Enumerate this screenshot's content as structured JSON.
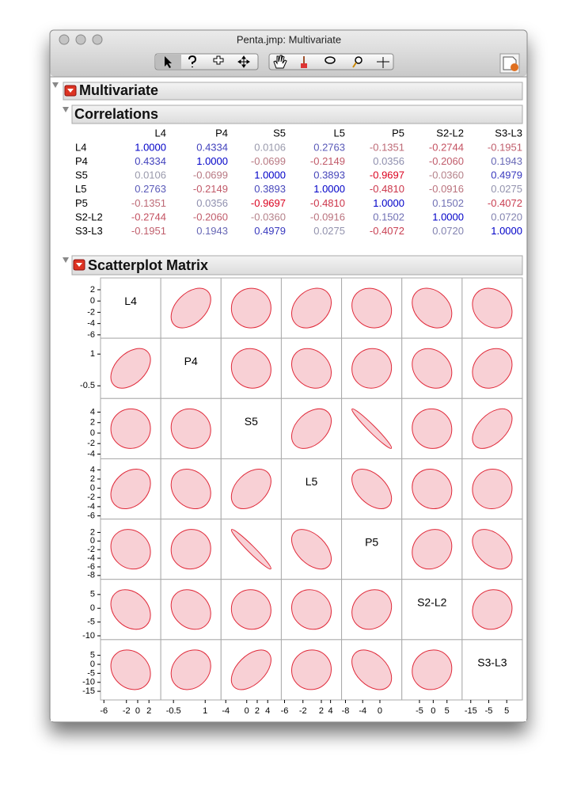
{
  "window": {
    "title": "Penta.jmp: Multivariate"
  },
  "multivariate": {
    "title": "Multivariate"
  },
  "correlations": {
    "title": "Correlations",
    "columns": [
      "L4",
      "P4",
      "S5",
      "L5",
      "P5",
      "S2-L2",
      "S3-L3"
    ],
    "rows": [
      {
        "label": "L4",
        "values": [
          "1.0000",
          "0.4334",
          "0.0106",
          "0.2763",
          "-0.1351",
          "-0.2744",
          "-0.1951"
        ]
      },
      {
        "label": "P4",
        "values": [
          "0.4334",
          "1.0000",
          "-0.0699",
          "-0.2149",
          "0.0356",
          "-0.2060",
          "0.1943"
        ]
      },
      {
        "label": "S5",
        "values": [
          "0.0106",
          "-0.0699",
          "1.0000",
          "0.3893",
          "-0.9697",
          "-0.0360",
          "0.4979"
        ]
      },
      {
        "label": "L5",
        "values": [
          "0.2763",
          "-0.2149",
          "0.3893",
          "1.0000",
          "-0.4810",
          "-0.0916",
          "0.0275"
        ]
      },
      {
        "label": "P5",
        "values": [
          "-0.1351",
          "0.0356",
          "-0.9697",
          "-0.4810",
          "1.0000",
          "0.1502",
          "-0.4072"
        ]
      },
      {
        "label": "S2-L2",
        "values": [
          "-0.2744",
          "-0.2060",
          "-0.0360",
          "-0.0916",
          "0.1502",
          "1.0000",
          "0.0720"
        ]
      },
      {
        "label": "S3-L3",
        "values": [
          "-0.1951",
          "0.1943",
          "0.4979",
          "0.0275",
          "-0.4072",
          "0.0720",
          "1.0000"
        ]
      }
    ]
  },
  "scatterplot_matrix": {
    "title": "Scatterplot Matrix",
    "variables": [
      {
        "name": "L4",
        "lim": [
          -6.6,
          4.1
        ],
        "yticks": [
          2,
          0,
          -2,
          -4,
          -6
        ],
        "xticks": [
          -6,
          -2,
          0,
          2
        ]
      },
      {
        "name": "P4",
        "lim": [
          -1.1,
          1.75
        ],
        "yticks": [
          1,
          -0.5
        ],
        "xticks": [
          -0.5,
          1
        ]
      },
      {
        "name": "S5",
        "lim": [
          -4.9,
          6.6
        ],
        "yticks": [
          4,
          2,
          0,
          -2,
          -4
        ],
        "xticks": [
          -4,
          0,
          2,
          4
        ]
      },
      {
        "name": "L5",
        "lim": [
          -6.7,
          6.4
        ],
        "yticks": [
          4,
          2,
          0,
          -2,
          -4,
          -6
        ],
        "xticks": [
          -6,
          -2,
          2,
          4
        ]
      },
      {
        "name": "P5",
        "lim": [
          -8.9,
          5.1
        ],
        "yticks": [
          2,
          0,
          -2,
          -4,
          -6,
          -8
        ],
        "xticks": [
          -8,
          -4,
          0
        ]
      },
      {
        "name": "S2-L2",
        "lim": [
          -11.4,
          10.5
        ],
        "yticks": [
          5,
          0,
          -5,
          -10
        ],
        "xticks": [
          -5,
          0,
          5
        ]
      },
      {
        "name": "S3-L3",
        "lim": [
          -19.8,
          13.7
        ],
        "yticks": [
          5,
          0,
          -5,
          -10,
          -15
        ],
        "xticks": [
          -15,
          -5,
          5
        ]
      }
    ]
  }
}
